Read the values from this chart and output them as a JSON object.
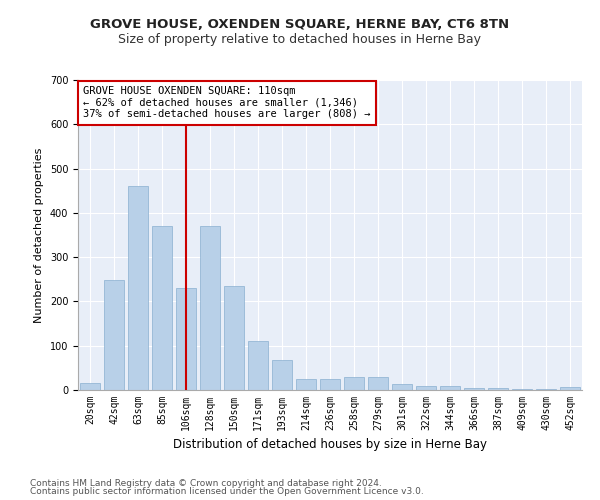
{
  "title1": "GROVE HOUSE, OXENDEN SQUARE, HERNE BAY, CT6 8TN",
  "title2": "Size of property relative to detached houses in Herne Bay",
  "xlabel": "Distribution of detached houses by size in Herne Bay",
  "ylabel": "Number of detached properties",
  "categories": [
    "20sqm",
    "42sqm",
    "63sqm",
    "85sqm",
    "106sqm",
    "128sqm",
    "150sqm",
    "171sqm",
    "193sqm",
    "214sqm",
    "236sqm",
    "258sqm",
    "279sqm",
    "301sqm",
    "322sqm",
    "344sqm",
    "366sqm",
    "387sqm",
    "409sqm",
    "430sqm",
    "452sqm"
  ],
  "values": [
    15,
    248,
    460,
    370,
    230,
    370,
    235,
    110,
    67,
    25,
    25,
    30,
    30,
    13,
    10,
    8,
    5,
    5,
    3,
    3,
    7
  ],
  "bar_color": "#b8d0e8",
  "bar_edge_color": "#8ab0d0",
  "highlight_index": 4,
  "highlight_color": "#cc0000",
  "ylim": [
    0,
    700
  ],
  "yticks": [
    0,
    100,
    200,
    300,
    400,
    500,
    600,
    700
  ],
  "annotation_text": "GROVE HOUSE OXENDEN SQUARE: 110sqm\n← 62% of detached houses are smaller (1,346)\n37% of semi-detached houses are larger (808) →",
  "annotation_box_color": "#ffffff",
  "annotation_border_color": "#cc0000",
  "footer1": "Contains HM Land Registry data © Crown copyright and database right 2024.",
  "footer2": "Contains public sector information licensed under the Open Government Licence v3.0.",
  "plot_bg_color": "#e8eef8",
  "title1_fontsize": 9.5,
  "title2_fontsize": 9,
  "xlabel_fontsize": 8.5,
  "ylabel_fontsize": 8,
  "tick_fontsize": 7,
  "footer_fontsize": 6.5,
  "annotation_fontsize": 7.5
}
